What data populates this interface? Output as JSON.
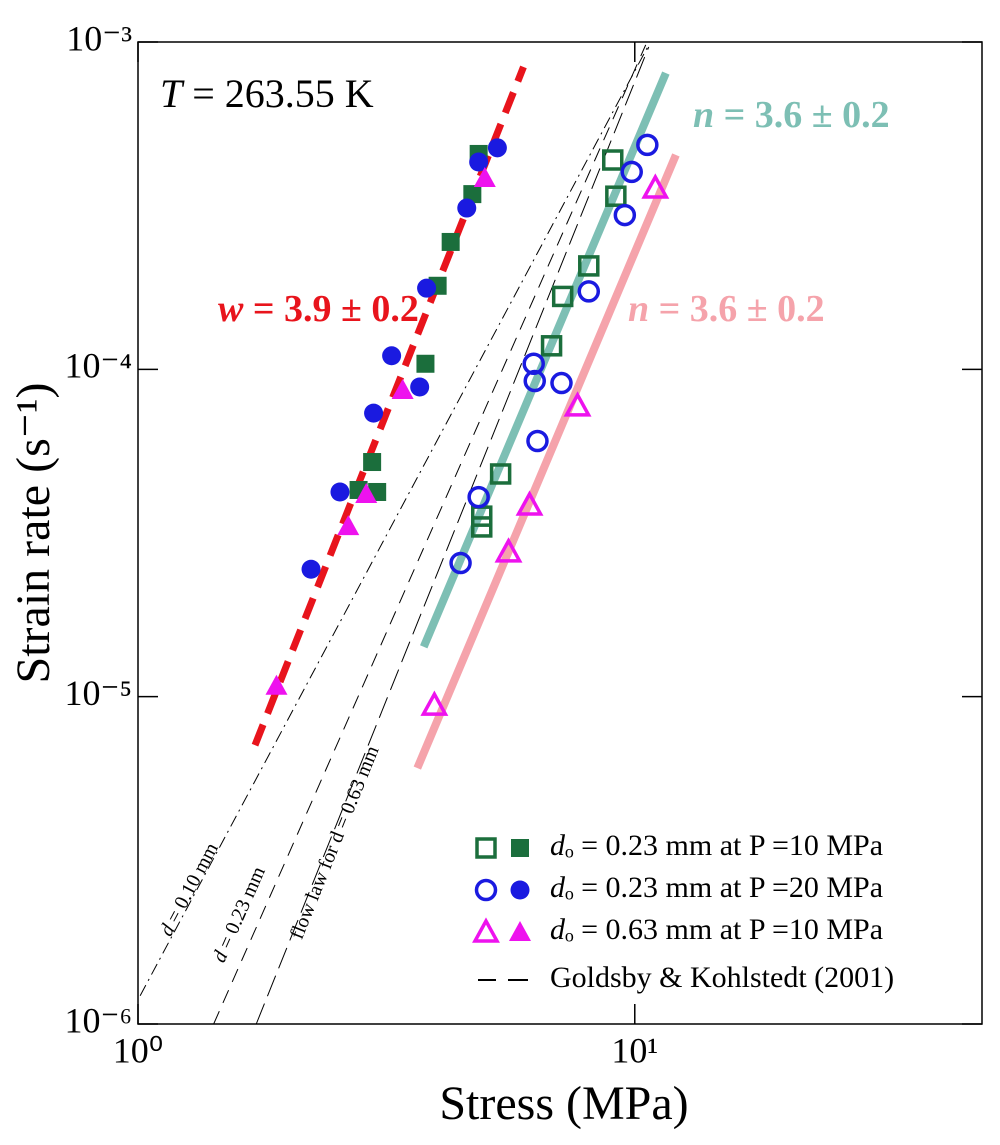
{
  "chart_data": {
    "type": "scatter",
    "x_label": "Stress (MPa)",
    "y_label": "Strain rate (s⁻¹)",
    "xlim": [
      1,
      50
    ],
    "ylim": [
      1e-06,
      0.001
    ],
    "log_x": true,
    "log_y": true,
    "xticks": [
      {
        "value": 1,
        "label": "10⁰"
      },
      {
        "value": 10,
        "label": "10¹"
      }
    ],
    "yticks": [
      {
        "value": 1e-06,
        "label": "10⁻⁶"
      },
      {
        "value": 1e-05,
        "label": "10⁻⁵"
      },
      {
        "value": 0.0001,
        "label": "10⁻⁴"
      },
      {
        "value": 0.001,
        "label": "10⁻³"
      }
    ],
    "annotation": "T = 263.55 K",
    "series": [
      {
        "name": "dₒ = 0.23 mm at P =10 MPa",
        "color": "#1b6e3c",
        "marker": "square",
        "open": {
          "x": [
            9.03,
            9.16,
            8.08,
            7.16,
            6.8,
            5.37,
            4.92,
            4.92
          ],
          "values": [
            0.000436,
            0.000338,
            0.000207,
            0.000167,
            0.000118,
            4.79e-05,
            3.56e-05,
            3.3e-05
          ]
        },
        "filled": {
          "x": [
            4.85,
            4.71,
            4.26,
            4.01,
            3.79,
            2.96,
            2.78,
            3.03
          ],
          "values": [
            0.000455,
            0.000343,
            0.000245,
            0.00018,
            0.000104,
            5.21e-05,
            4.28e-05,
            4.22e-05
          ]
        }
      },
      {
        "name": "dₒ = 0.23 mm at P =20 MPa",
        "color": "#1a1ae0",
        "marker": "circle",
        "open": {
          "x": [
            10.6,
            9.86,
            9.55,
            8.08,
            6.26,
            6.29,
            7.12,
            6.37,
            4.85,
            4.46
          ],
          "values": [
            0.000485,
            0.000401,
            0.000296,
            0.000173,
            0.000104,
            9.21e-05,
            9.08e-05,
            6.04e-05,
            4.07e-05,
            2.56e-05
          ]
        },
        "filled": {
          "x": [
            5.29,
            4.85,
            4.59,
            3.81,
            3.24,
            3.69,
            2.98,
            2.55,
            2.23
          ],
          "values": [
            0.000475,
            0.00043,
            0.000311,
            0.000177,
            0.00011,
            8.83e-05,
            7.35e-05,
            4.22e-05,
            2.45e-05
          ]
        }
      },
      {
        "name": "dₒ = 0.63 mm at P =10 MPa",
        "color": "#ee12ee",
        "marker": "triangle",
        "open": {
          "x": [
            11.0,
            7.67,
            6.14,
            5.57,
            3.95
          ],
          "values": [
            0.000358,
            7.73e-05,
            3.85e-05,
            2.77e-05,
            9.42e-06
          ]
        },
        "filled": {
          "x": [
            4.99,
            3.41,
            2.88,
            2.65,
            1.9
          ],
          "values": [
            0.000384,
            8.65e-05,
            4.16e-05,
            3.32e-05,
            1.08e-05
          ]
        }
      }
    ],
    "fits": [
      {
        "label": "w = 3.9 ± 0.2",
        "color": "#e8141c",
        "style": "dashed",
        "x": [
          1.72,
          5.97
        ],
        "values": [
          7.11e-06,
          0.000839
        ]
      },
      {
        "label": "n = 3.6 ± 0.2",
        "color": "#7dbfb4",
        "style": "solid",
        "x": [
          3.76,
          11.55
        ],
        "values": [
          1.42e-05,
          0.000804
        ]
      },
      {
        "label": "n = 3.6 ± 0.2",
        "color": "#f5a3ab",
        "style": "solid",
        "x": [
          3.65,
          12.1
        ],
        "values": [
          6.05e-06,
          0.000452
        ]
      }
    ],
    "reference": {
      "name": "Goldsby & Kohlstedt (2001)",
      "color": "#000000",
      "lines": [
        {
          "label": "d = 0.10 mm",
          "style": "dashdot",
          "x": [
            1.01,
            10.67
          ],
          "values": [
            1.22e-06,
            0.00098
          ]
        },
        {
          "label": "d = 0.23 mm",
          "style": "dashed",
          "x": [
            1.42,
            10.52
          ],
          "values": [
            1e-06,
            0.00098
          ]
        },
        {
          "label": "flow law for d = 0.63 mm",
          "style": "longdash",
          "x": [
            1.73,
            10.67
          ],
          "values": [
            1e-06,
            0.000966
          ]
        }
      ]
    }
  }
}
